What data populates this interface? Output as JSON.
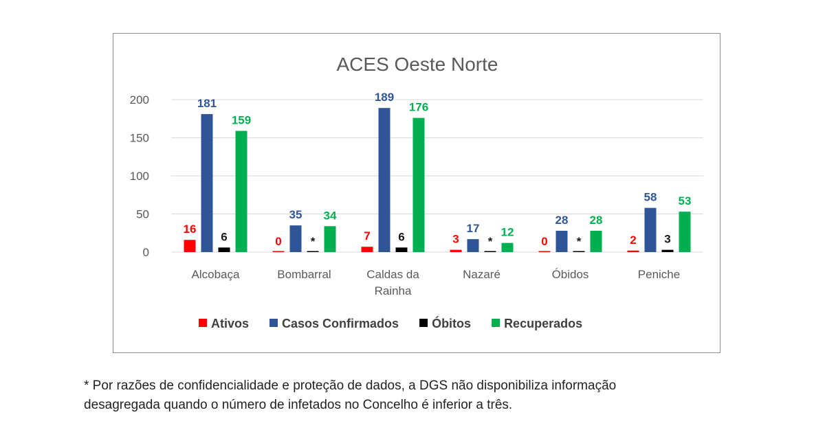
{
  "chart_data": {
    "type": "bar",
    "title": "ACES Oeste Norte",
    "categories": [
      [
        "Alcobaça"
      ],
      [
        "Bombarral"
      ],
      [
        "Caldas da",
        "Rainha"
      ],
      [
        "Nazaré"
      ],
      [
        "Óbidos"
      ],
      [
        "Peniche"
      ]
    ],
    "ylim": [
      0,
      200
    ],
    "yticks": [
      0,
      50,
      100,
      150,
      200
    ],
    "grid": true,
    "legend_position": "bottom",
    "series": [
      {
        "name": "Ativos",
        "color": "#ff0000",
        "values": [
          16,
          0,
          7,
          3,
          0,
          2
        ],
        "labels": [
          "16",
          "0",
          "7",
          "3",
          "0",
          "2"
        ]
      },
      {
        "name": "Casos Confirmados",
        "color": "#2f5597",
        "values": [
          181,
          35,
          189,
          17,
          28,
          58
        ],
        "labels": [
          "181",
          "35",
          "189",
          "17",
          "28",
          "58"
        ]
      },
      {
        "name": "Óbitos",
        "color": "#000000",
        "values": [
          6,
          0,
          6,
          0,
          0,
          3
        ],
        "labels": [
          "6",
          "*",
          "6",
          "*",
          "*",
          "3"
        ]
      },
      {
        "name": "Recuperados",
        "color": "#00b050",
        "values": [
          159,
          34,
          176,
          12,
          28,
          53
        ],
        "labels": [
          "159",
          "34",
          "176",
          "12",
          "28",
          "53"
        ]
      }
    ]
  },
  "footnote": {
    "line1": "* Por razões de confidencialidade e proteção de dados, a DGS não disponibiliza informação",
    "line2": "desagregada quando o número de infetados no Concelho é inferior a três."
  }
}
